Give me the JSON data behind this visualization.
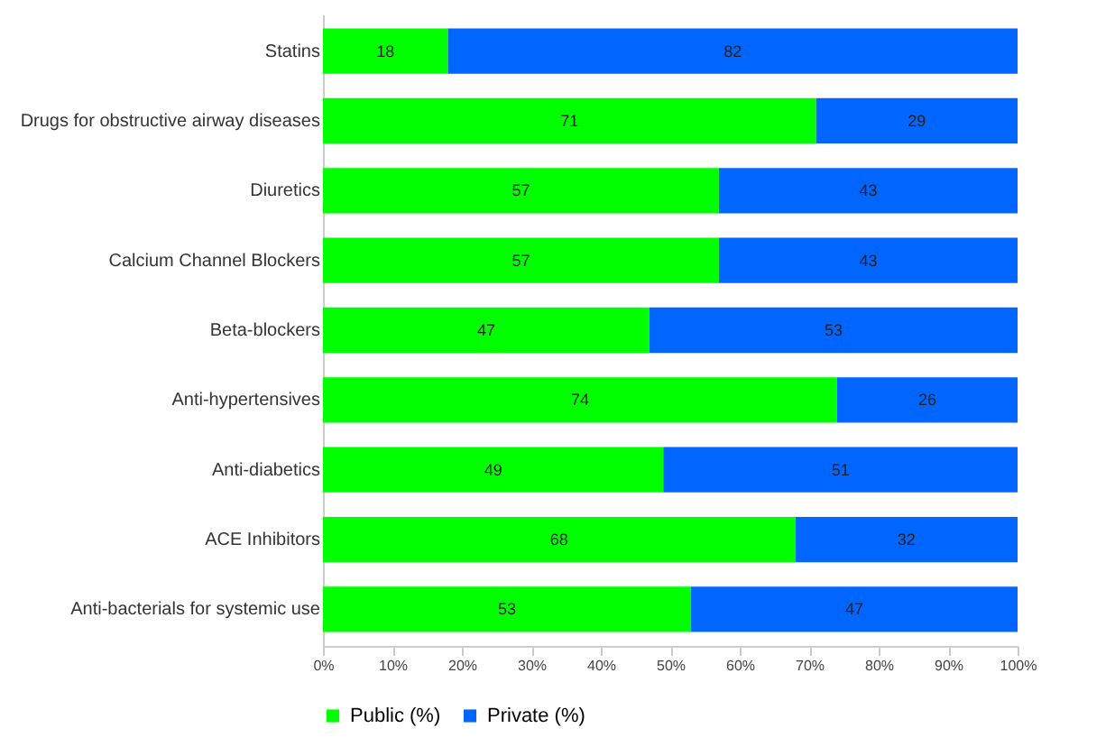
{
  "chart_data": {
    "type": "bar",
    "orientation": "horizontal",
    "stacked": true,
    "data_labels": true,
    "legend": "bottom",
    "categories": [
      "Statins",
      "Drugs for obstructive airway diseases",
      "Diuretics",
      "Calcium Channel Blockers",
      "Beta-blockers",
      "Anti-hypertensives",
      "Anti-diabetics",
      "ACE Inhibitors",
      "Anti-bacterials for systemic use"
    ],
    "series": [
      {
        "name": "Public (%)",
        "color": "#00ff00",
        "values": [
          18,
          71,
          57,
          57,
          47,
          74,
          49,
          68,
          53
        ]
      },
      {
        "name": "Private (%)",
        "color": "#0066ff",
        "values": [
          82,
          29,
          43,
          43,
          53,
          26,
          51,
          32,
          47
        ]
      }
    ],
    "xlim": [
      0,
      100
    ],
    "xticks": [
      {
        "value": 0,
        "label": "0%"
      },
      {
        "value": 10,
        "label": "10%"
      },
      {
        "value": 20,
        "label": "20%"
      },
      {
        "value": 30,
        "label": "30%"
      },
      {
        "value": 40,
        "label": "40%"
      },
      {
        "value": 50,
        "label": "50%"
      },
      {
        "value": 60,
        "label": "60%"
      },
      {
        "value": 70,
        "label": "70%"
      },
      {
        "value": 80,
        "label": "80%"
      },
      {
        "value": 90,
        "label": "90%"
      },
      {
        "value": 100,
        "label": "100%"
      }
    ]
  }
}
